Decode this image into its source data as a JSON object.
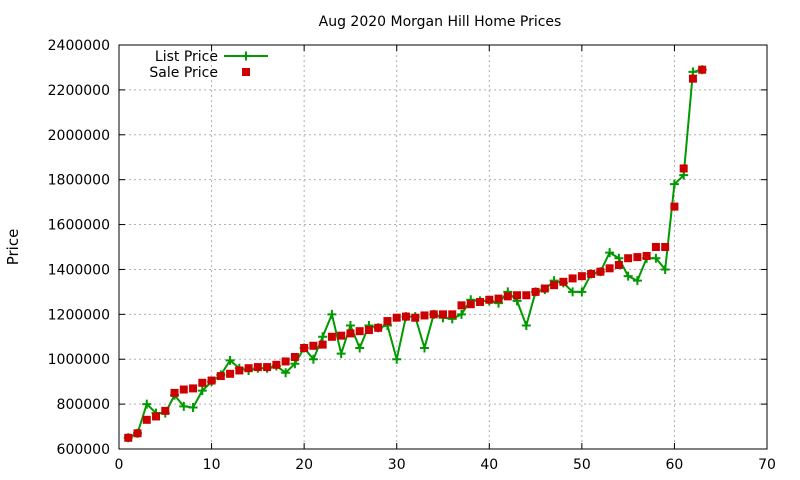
{
  "chart_data": {
    "type": "line",
    "title": "Aug 2020 Morgan Hill Home Prices",
    "xlabel": "",
    "ylabel": "Price",
    "xlim": [
      0,
      70
    ],
    "ylim": [
      600000,
      2400000
    ],
    "xticks": [
      0,
      10,
      20,
      30,
      40,
      50,
      60,
      70
    ],
    "yticks": [
      600000,
      800000,
      1000000,
      1200000,
      1400000,
      1600000,
      1800000,
      2000000,
      2200000,
      2400000
    ],
    "grid": true,
    "legend_position": "top-left",
    "series": [
      {
        "name": "List Price",
        "style": "line-points",
        "marker": "plus",
        "color": "#009900",
        "x": [
          1,
          2,
          3,
          4,
          5,
          6,
          7,
          8,
          9,
          10,
          11,
          12,
          13,
          14,
          15,
          16,
          17,
          18,
          19,
          20,
          21,
          22,
          23,
          24,
          25,
          26,
          27,
          28,
          29,
          30,
          31,
          32,
          33,
          34,
          35,
          36,
          37,
          38,
          39,
          40,
          41,
          42,
          43,
          44,
          45,
          46,
          47,
          48,
          49,
          50,
          51,
          52,
          53,
          54,
          55,
          56,
          57,
          58,
          59,
          60,
          61,
          62,
          63
        ],
        "y": [
          650000,
          670000,
          800000,
          760000,
          760000,
          840000,
          790000,
          785000,
          860000,
          900000,
          930000,
          995000,
          960000,
          950000,
          960000,
          960000,
          970000,
          940000,
          980000,
          1050000,
          1000000,
          1100000,
          1200000,
          1025000,
          1150000,
          1050000,
          1150000,
          1140000,
          1150000,
          1000000,
          1190000,
          1190000,
          1050000,
          1200000,
          1185000,
          1180000,
          1200000,
          1265000,
          1260000,
          1260000,
          1250000,
          1300000,
          1260000,
          1150000,
          1300000,
          1310000,
          1350000,
          1340000,
          1300000,
          1300000,
          1380000,
          1390000,
          1475000,
          1450000,
          1370000,
          1350000,
          1450000,
          1450000,
          1400000,
          1780000,
          1820000,
          2280000,
          2290000
        ]
      },
      {
        "name": "Sale Price",
        "style": "points",
        "marker": "square",
        "color": "#cc0000",
        "x": [
          1,
          2,
          3,
          4,
          5,
          6,
          7,
          8,
          9,
          10,
          11,
          12,
          13,
          14,
          15,
          16,
          17,
          18,
          19,
          20,
          21,
          22,
          23,
          24,
          25,
          26,
          27,
          28,
          29,
          30,
          31,
          32,
          33,
          34,
          35,
          36,
          37,
          38,
          39,
          40,
          41,
          42,
          43,
          44,
          45,
          46,
          47,
          48,
          49,
          50,
          51,
          52,
          53,
          54,
          55,
          56,
          57,
          58,
          59,
          60,
          61,
          62,
          63
        ],
        "y": [
          650000,
          670000,
          730000,
          745000,
          770000,
          850000,
          865000,
          870000,
          895000,
          905000,
          925000,
          935000,
          950000,
          960000,
          965000,
          965000,
          975000,
          990000,
          1010000,
          1050000,
          1060000,
          1065000,
          1100000,
          1105000,
          1115000,
          1125000,
          1130000,
          1140000,
          1170000,
          1185000,
          1190000,
          1185000,
          1195000,
          1200000,
          1200000,
          1200000,
          1240000,
          1245000,
          1255000,
          1265000,
          1270000,
          1280000,
          1285000,
          1285000,
          1300000,
          1315000,
          1330000,
          1345000,
          1360000,
          1370000,
          1380000,
          1390000,
          1405000,
          1420000,
          1450000,
          1455000,
          1460000,
          1500000,
          1500000,
          1680000,
          1850000,
          2250000,
          2290000
        ]
      }
    ]
  }
}
